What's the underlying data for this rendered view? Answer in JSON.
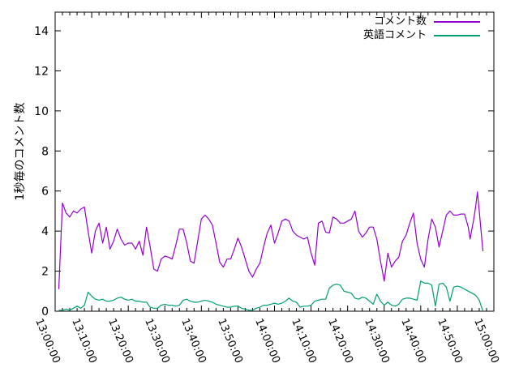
{
  "chart_data": {
    "type": "line",
    "title": "",
    "xlabel": "",
    "ylabel": "1秒毎のコメント数",
    "x_unit": "minutes_after_13:00:00",
    "x_range_labels": [
      "13:00:00",
      "15:00:00"
    ],
    "ylim": [
      0,
      15
    ],
    "y_ticks": [
      0,
      2,
      4,
      6,
      8,
      10,
      12,
      14
    ],
    "x_ticks": [
      {
        "minute": 0,
        "label": "13:00:00"
      },
      {
        "minute": 10,
        "label": "13:10:00"
      },
      {
        "minute": 20,
        "label": "13:20:00"
      },
      {
        "minute": 30,
        "label": "13:30:00"
      },
      {
        "minute": 40,
        "label": "13:40:00"
      },
      {
        "minute": 50,
        "label": "13:50:00"
      },
      {
        "minute": 60,
        "label": "14:00:00"
      },
      {
        "minute": 70,
        "label": "14:10:00"
      },
      {
        "minute": 80,
        "label": "14:20:00"
      },
      {
        "minute": 90,
        "label": "14:30:00"
      },
      {
        "minute": 100,
        "label": "14:40:00"
      },
      {
        "minute": 110,
        "label": "14:50:00"
      },
      {
        "minute": 120,
        "label": "15:00:00"
      }
    ],
    "x_minor_tick_every_minutes": 2,
    "grid": false,
    "legend_position": "top-right-inside",
    "series": [
      {
        "name": "コメント数",
        "color": "#9400d3",
        "points": [
          [
            1,
            1.1
          ],
          [
            2,
            5.4
          ],
          [
            3,
            4.9
          ],
          [
            4,
            4.7
          ],
          [
            5,
            5.0
          ],
          [
            6,
            4.9
          ],
          [
            7,
            5.1
          ],
          [
            8,
            5.2
          ],
          [
            9,
            4.0
          ],
          [
            10,
            2.9
          ],
          [
            11,
            4.0
          ],
          [
            12,
            4.4
          ],
          [
            13,
            3.4
          ],
          [
            14,
            4.2
          ],
          [
            15,
            3.1
          ],
          [
            16,
            3.5
          ],
          [
            17,
            4.1
          ],
          [
            18,
            3.6
          ],
          [
            19,
            3.3
          ],
          [
            20,
            3.4
          ],
          [
            21,
            3.4
          ],
          [
            22,
            3.1
          ],
          [
            23,
            3.5
          ],
          [
            24,
            2.8
          ],
          [
            25,
            4.2
          ],
          [
            26,
            3.2
          ],
          [
            27,
            2.1
          ],
          [
            28,
            2.0
          ],
          [
            29,
            2.6
          ],
          [
            30,
            2.75
          ],
          [
            31,
            2.7
          ],
          [
            32,
            2.6
          ],
          [
            33,
            3.3
          ],
          [
            34,
            4.1
          ],
          [
            35,
            4.1
          ],
          [
            36,
            3.4
          ],
          [
            37,
            2.5
          ],
          [
            38,
            2.4
          ],
          [
            39,
            3.5
          ],
          [
            40,
            4.6
          ],
          [
            41,
            4.8
          ],
          [
            42,
            4.6
          ],
          [
            43,
            4.3
          ],
          [
            44,
            3.4
          ],
          [
            45,
            2.45
          ],
          [
            46,
            2.2
          ],
          [
            47,
            2.6
          ],
          [
            48,
            2.6
          ],
          [
            49,
            3.1
          ],
          [
            50,
            3.65
          ],
          [
            51,
            3.2
          ],
          [
            52,
            2.6
          ],
          [
            53,
            2.0
          ],
          [
            54,
            1.7
          ],
          [
            55,
            2.1
          ],
          [
            56,
            2.4
          ],
          [
            57,
            3.2
          ],
          [
            58,
            3.9
          ],
          [
            59,
            4.3
          ],
          [
            60,
            3.4
          ],
          [
            61,
            3.9
          ],
          [
            62,
            4.5
          ],
          [
            63,
            4.6
          ],
          [
            64,
            4.5
          ],
          [
            65,
            4.0
          ],
          [
            66,
            3.8
          ],
          [
            67,
            3.7
          ],
          [
            68,
            3.6
          ],
          [
            69,
            3.7
          ],
          [
            70,
            2.9
          ],
          [
            71,
            2.3
          ],
          [
            72,
            4.4
          ],
          [
            73,
            4.5
          ],
          [
            74,
            3.95
          ],
          [
            75,
            3.9
          ],
          [
            76,
            4.7
          ],
          [
            77,
            4.6
          ],
          [
            78,
            4.4
          ],
          [
            79,
            4.4
          ],
          [
            80,
            4.5
          ],
          [
            81,
            4.6
          ],
          [
            82,
            5.0
          ],
          [
            83,
            4.0
          ],
          [
            84,
            3.7
          ],
          [
            85,
            3.9
          ],
          [
            86,
            4.2
          ],
          [
            87,
            4.2
          ],
          [
            88,
            3.6
          ],
          [
            89,
            2.5
          ],
          [
            90,
            1.5
          ],
          [
            91,
            2.9
          ],
          [
            92,
            2.2
          ],
          [
            93,
            2.5
          ],
          [
            94,
            2.7
          ],
          [
            95,
            3.5
          ],
          [
            96,
            3.8
          ],
          [
            97,
            4.4
          ],
          [
            98,
            4.9
          ],
          [
            99,
            3.4
          ],
          [
            100,
            2.6
          ],
          [
            101,
            2.2
          ],
          [
            102,
            3.6
          ],
          [
            103,
            4.6
          ],
          [
            104,
            4.2
          ],
          [
            105,
            3.2
          ],
          [
            106,
            4.0
          ],
          [
            107,
            4.8
          ],
          [
            108,
            5.0
          ],
          [
            109,
            4.8
          ],
          [
            110,
            4.8
          ],
          [
            111,
            4.85
          ],
          [
            112,
            4.85
          ],
          [
            113,
            4.2
          ],
          [
            113.5,
            3.6
          ],
          [
            114.5,
            4.6
          ],
          [
            115,
            5.2
          ],
          [
            115.5,
            5.95
          ],
          [
            116,
            5.0
          ],
          [
            116.5,
            4.0
          ],
          [
            117,
            3.0
          ]
        ]
      },
      {
        "name": "英語コメント",
        "color": "#009e73",
        "points": [
          [
            1,
            0.05
          ],
          [
            2,
            0.05
          ],
          [
            3,
            0.1
          ],
          [
            4,
            0.05
          ],
          [
            5,
            0.15
          ],
          [
            6,
            0.25
          ],
          [
            7,
            0.15
          ],
          [
            8,
            0.3
          ],
          [
            9,
            0.95
          ],
          [
            10,
            0.75
          ],
          [
            11,
            0.6
          ],
          [
            12,
            0.55
          ],
          [
            13,
            0.6
          ],
          [
            14,
            0.5
          ],
          [
            15,
            0.5
          ],
          [
            16,
            0.55
          ],
          [
            17,
            0.65
          ],
          [
            18,
            0.7
          ],
          [
            19,
            0.6
          ],
          [
            20,
            0.55
          ],
          [
            21,
            0.6
          ],
          [
            22,
            0.5
          ],
          [
            23,
            0.5
          ],
          [
            24,
            0.45
          ],
          [
            25,
            0.45
          ],
          [
            26,
            0.2
          ],
          [
            27,
            0.15
          ],
          [
            28,
            0.15
          ],
          [
            29,
            0.3
          ],
          [
            30,
            0.35
          ],
          [
            31,
            0.3
          ],
          [
            32,
            0.3
          ],
          [
            33,
            0.25
          ],
          [
            34,
            0.3
          ],
          [
            35,
            0.55
          ],
          [
            36,
            0.6
          ],
          [
            37,
            0.5
          ],
          [
            38,
            0.45
          ],
          [
            39,
            0.45
          ],
          [
            40,
            0.5
          ],
          [
            41,
            0.55
          ],
          [
            42,
            0.5
          ],
          [
            43,
            0.45
          ],
          [
            44,
            0.35
          ],
          [
            45,
            0.3
          ],
          [
            46,
            0.25
          ],
          [
            47,
            0.2
          ],
          [
            48,
            0.2
          ],
          [
            49,
            0.25
          ],
          [
            50,
            0.25
          ],
          [
            51,
            0.15
          ],
          [
            52,
            0.1
          ],
          [
            53,
            0.05
          ],
          [
            54,
            0.05
          ],
          [
            55,
            0.15
          ],
          [
            56,
            0.2
          ],
          [
            57,
            0.3
          ],
          [
            58,
            0.3
          ],
          [
            59,
            0.35
          ],
          [
            60,
            0.4
          ],
          [
            61,
            0.35
          ],
          [
            62,
            0.4
          ],
          [
            63,
            0.5
          ],
          [
            64,
            0.65
          ],
          [
            65,
            0.5
          ],
          [
            66,
            0.45
          ],
          [
            67,
            0.2
          ],
          [
            68,
            0.25
          ],
          [
            69,
            0.25
          ],
          [
            70,
            0.3
          ],
          [
            71,
            0.5
          ],
          [
            72,
            0.55
          ],
          [
            73,
            0.6
          ],
          [
            74,
            0.6
          ],
          [
            75,
            1.15
          ],
          [
            76,
            1.3
          ],
          [
            77,
            1.35
          ],
          [
            78,
            1.3
          ],
          [
            79,
            1.0
          ],
          [
            80,
            0.95
          ],
          [
            81,
            0.9
          ],
          [
            82,
            0.65
          ],
          [
            83,
            0.6
          ],
          [
            84,
            0.7
          ],
          [
            85,
            0.65
          ],
          [
            86,
            0.5
          ],
          [
            87,
            0.35
          ],
          [
            88,
            0.85
          ],
          [
            89,
            0.5
          ],
          [
            90,
            0.3
          ],
          [
            91,
            0.45
          ],
          [
            92,
            0.3
          ],
          [
            93,
            0.25
          ],
          [
            94,
            0.35
          ],
          [
            95,
            0.6
          ],
          [
            96,
            0.65
          ],
          [
            97,
            0.65
          ],
          [
            98,
            0.6
          ],
          [
            99,
            0.55
          ],
          [
            100,
            1.5
          ],
          [
            101,
            1.4
          ],
          [
            102,
            1.4
          ],
          [
            103,
            1.3
          ],
          [
            104,
            0.25
          ],
          [
            105,
            1.35
          ],
          [
            106,
            1.4
          ],
          [
            107,
            1.2
          ],
          [
            108,
            0.5
          ],
          [
            109,
            1.2
          ],
          [
            110,
            1.25
          ],
          [
            111,
            1.2
          ],
          [
            112,
            1.1
          ],
          [
            113,
            1.0
          ],
          [
            114,
            0.9
          ],
          [
            115,
            0.8
          ],
          [
            116,
            0.55
          ],
          [
            117,
            0.0
          ]
        ]
      }
    ]
  },
  "colors": {
    "background": "#ffffff",
    "axis": "#000000",
    "text": "#000000",
    "series1": "#9400d3",
    "series2": "#009e73"
  }
}
